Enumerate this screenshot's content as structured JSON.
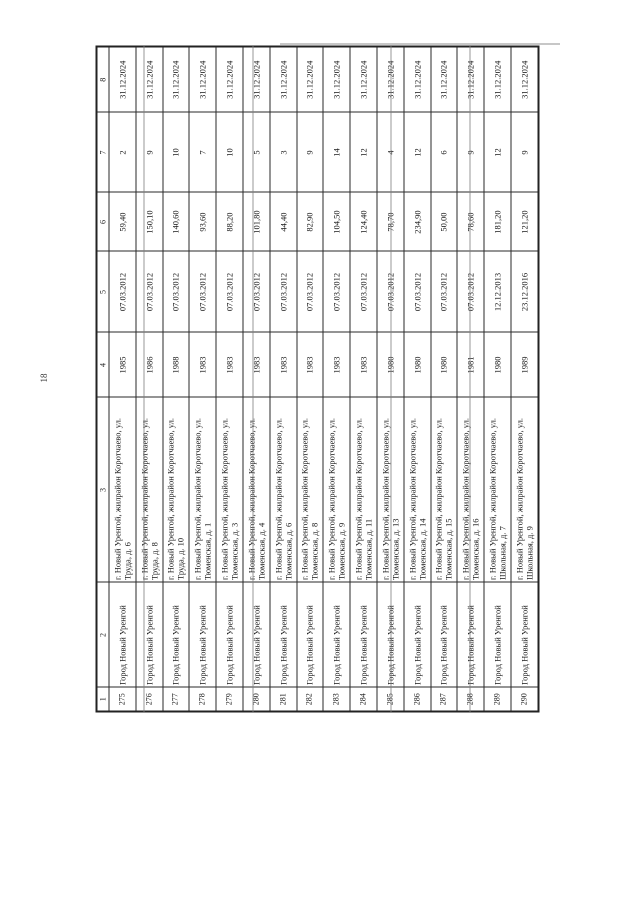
{
  "page": {
    "number": "18"
  },
  "table": {
    "column_headers": [
      "1",
      "2",
      "3",
      "4",
      "5",
      "6",
      "7",
      "8"
    ],
    "rows": [
      [
        "275",
        "Город Новый Уренгой",
        "г. Новый Уренгой, жилрайон Коротчаево, ул. Труда, д. 6",
        "1985",
        "07.03.2012",
        "59,40",
        "2",
        "31.12.2024"
      ],
      [
        "276",
        "Город Новый Уренгой",
        "г. Новый Уренгой, жилрайон Коротчаево, ул. Труда, д. 8",
        "1986",
        "07.03.2012",
        "150,10",
        "9",
        "31.12.2024"
      ],
      [
        "277",
        "Город Новый Уренгой",
        "г. Новый Уренгой, жилрайон Коротчаево, ул. Труда, д. 10",
        "1988",
        "07.03.2012",
        "140,60",
        "10",
        "31.12.2024"
      ],
      [
        "278",
        "Город Новый Уренгой",
        "г. Новый Уренгой, жилрайон Коротчаево, ул. Тюменская, д. 1",
        "1983",
        "07.03.2012",
        "93,60",
        "7",
        "31.12.2024"
      ],
      [
        "279",
        "Город Новый Уренгой",
        "г. Новый Уренгой, жилрайон Коротчаево, ул. Тюменская, д. 3",
        "1983",
        "07.03.2012",
        "88,20",
        "10",
        "31.12.2024"
      ],
      [
        "280",
        "Город Новый Уренгой",
        "г. Новый Уренгой, жилрайон Коротчаево, ул. Тюменская, д. 4",
        "1983",
        "07.03.2012",
        "101,80",
        "5",
        "31.12.2024"
      ],
      [
        "281",
        "Город Новый Уренгой",
        "г. Новый Уренгой, жилрайон Коротчаево, ул. Тюменская, д. 6",
        "1983",
        "07.03.2012",
        "44,40",
        "3",
        "31.12.2024"
      ],
      [
        "282",
        "Город Новый Уренгой",
        "г. Новый Уренгой, жилрайон Коротчаево, ул. Тюменская, д. 8",
        "1983",
        "07.03.2012",
        "82,90",
        "9",
        "31.12.2024"
      ],
      [
        "283",
        "Город Новый Уренгой",
        "г. Новый Уренгой, жилрайон Коротчаево, ул. Тюменская, д. 9",
        "1983",
        "07.03.2012",
        "104,50",
        "14",
        "31.12.2024"
      ],
      [
        "284",
        "Город Новый Уренгой",
        "г. Новый Уренгой, жилрайон Коротчаево, ул. Тюменская, д. 11",
        "1983",
        "07.03.2012",
        "124,40",
        "12",
        "31.12.2024"
      ],
      [
        "285",
        "Город Новый Уренгой",
        "г. Новый Уренгой, жилрайон Коротчаево, ул. Тюменская, д. 13",
        "1980",
        "07.03.2012",
        "78,70",
        "4",
        "31.12.2024"
      ],
      [
        "286",
        "Город Новый Уренгой",
        "г. Новый Уренгой, жилрайон Коротчаево, ул. Тюменская, д. 14",
        "1980",
        "07.03.2012",
        "234,90",
        "12",
        "31.12.2024"
      ],
      [
        "287",
        "Город Новый Уренгой",
        "г. Новый Уренгой, жилрайон Коротчаево, ул. Тюменская, д. 15",
        "1980",
        "07.03.2012",
        "50,00",
        "6",
        "31.12.2024"
      ],
      [
        "288",
        "Город Новый Уренгой",
        "г. Новый Уренгой, жилрайон Коротчаево, ул. Тюменская, д. 16",
        "1981",
        "07.03.2012",
        "78,60",
        "9",
        "31.12.2024"
      ],
      [
        "289",
        "Город Новый Уренгой",
        "г. Новый Уренгой, жилрайон Коротчаево, ул. Школьная, д. 7",
        "1980",
        "12.12.2013",
        "181,20",
        "12",
        "31.12.2024"
      ],
      [
        "290",
        "Город Новый Уренгой",
        "г. Новый Уренгой, жилрайон Коротчаево, ул. Школьная, д. 9",
        "1989",
        "23.12.2016",
        "121,20",
        "9",
        "31.12.2024"
      ]
    ]
  }
}
